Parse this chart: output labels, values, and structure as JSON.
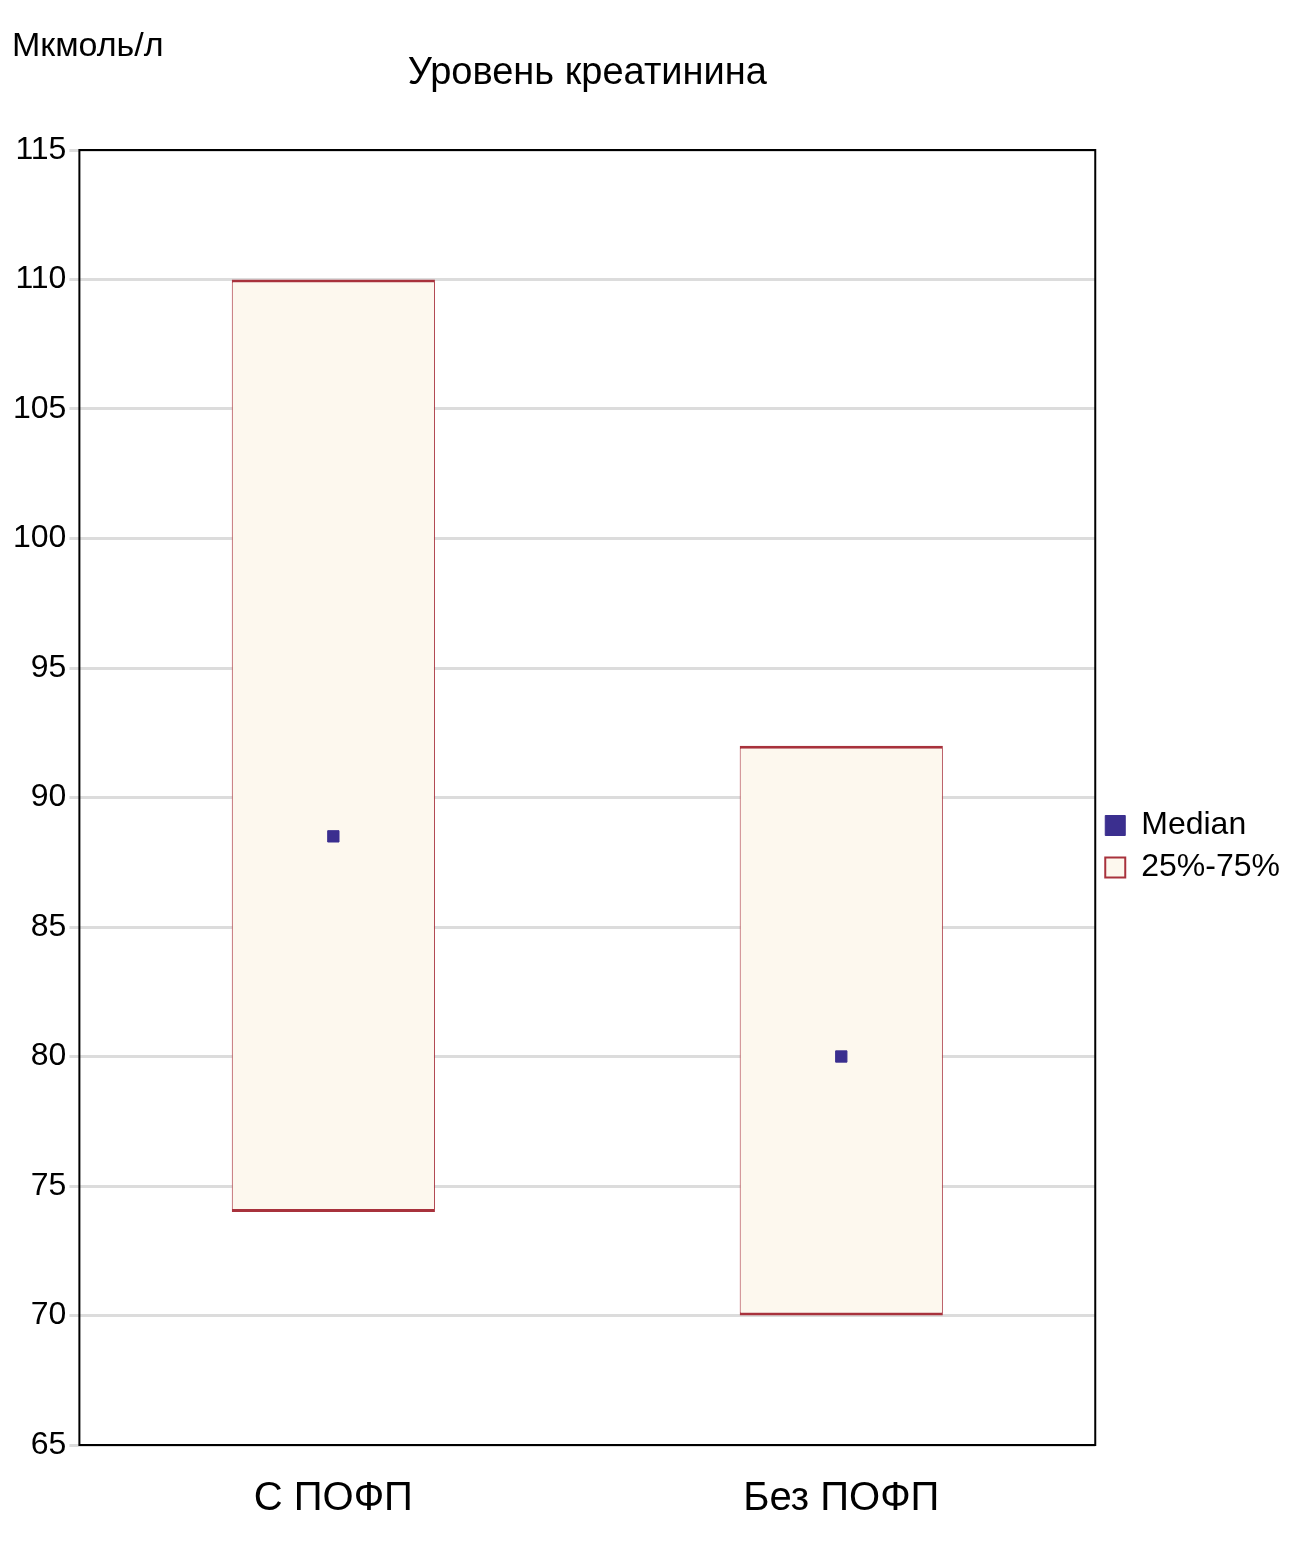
{
  "chart_data": {
    "type": "bar",
    "title": "Уровень креатинина",
    "ylabel": "Мкмоль/л",
    "categories": [
      "С ПОФП",
      "Без ПОФП"
    ],
    "series": [
      {
        "name": "Median",
        "type": "scatter",
        "x": [
          "С ПОФП",
          "Без ПОФП"
        ],
        "color": "#3b2f8f",
        "values": [
          88.5,
          80
        ]
      },
      {
        "name": "25%-75%",
        "color": "#fdf8ee",
        "base": [
          74,
          70
        ],
        "values": [
          36,
          22
        ]
      }
    ],
    "ylim": [
      65,
      115
    ],
    "yticks": [
      65,
      70,
      75,
      80,
      85,
      90,
      95,
      100,
      105,
      110,
      115
    ],
    "grid": "y",
    "legend": "right",
    "marker": "square"
  }
}
